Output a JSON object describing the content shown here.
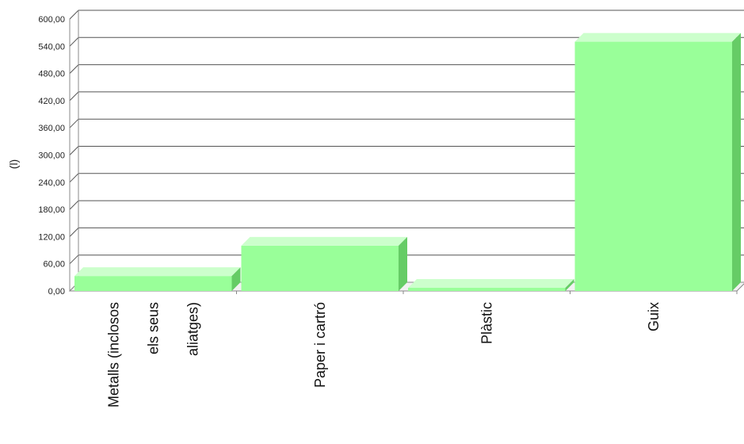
{
  "chart_data": {
    "type": "bar",
    "title": "",
    "xlabel": "",
    "ylabel": "(l)",
    "categories": [
      [
        "Metalls (inclosos",
        "els seus",
        "aliatges)"
      ],
      [
        "Paper i cartró"
      ],
      [
        "Plàstic"
      ],
      [
        "Guix"
      ]
    ],
    "values": [
      33,
      100,
      7,
      550
    ],
    "ylim": [
      0,
      600
    ],
    "yticks": [
      "0,00",
      "60,00",
      "120,00",
      "180,00",
      "240,00",
      "300,00",
      "360,00",
      "420,00",
      "480,00",
      "540,00",
      "600,00"
    ],
    "grid": true,
    "legend": "none",
    "colors": {
      "bar_front": "#99ff99",
      "bar_top": "#ccffcc",
      "bar_side": "#66cc66",
      "grid": "#555555",
      "axis": "#888888"
    }
  }
}
